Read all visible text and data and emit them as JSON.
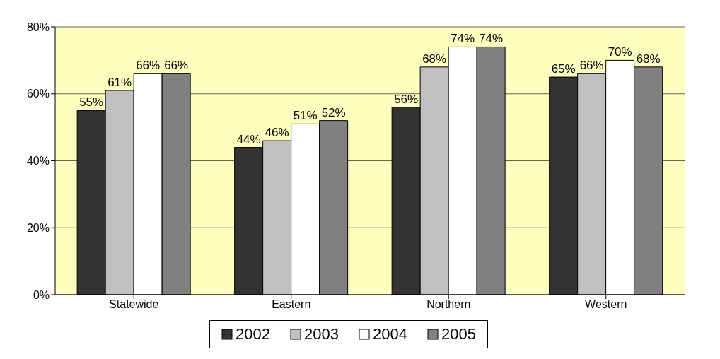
{
  "chart_data": {
    "type": "bar",
    "categories": [
      "Statewide",
      "Eastern",
      "Northern",
      "Western"
    ],
    "series": [
      {
        "name": "2002",
        "color": "#333333",
        "values": [
          55,
          44,
          56,
          65
        ],
        "value_labels": [
          "55%",
          "44%",
          "56%",
          "65%"
        ]
      },
      {
        "name": "2003",
        "color": "#c0c0c0",
        "values": [
          61,
          46,
          68,
          66
        ],
        "value_labels": [
          "61%",
          "46%",
          "68%",
          "66%"
        ]
      },
      {
        "name": "2004",
        "color": "#ffffff",
        "values": [
          66,
          51,
          74,
          70
        ],
        "value_labels": [
          "66%",
          "51%",
          "74%",
          "70%"
        ]
      },
      {
        "name": "2005",
        "color": "#808080",
        "values": [
          66,
          52,
          74,
          68
        ],
        "value_labels": [
          "66%",
          "52%",
          "74%",
          "68%"
        ]
      }
    ],
    "ylim": [
      0,
      80
    ],
    "yticks": [
      {
        "value": 0,
        "label": "0%"
      },
      {
        "value": 20,
        "label": "20%"
      },
      {
        "value": 40,
        "label": "40%"
      },
      {
        "value": 60,
        "label": "60%"
      },
      {
        "value": 80,
        "label": "80%"
      }
    ],
    "grid": "y",
    "legend": "bottom"
  }
}
